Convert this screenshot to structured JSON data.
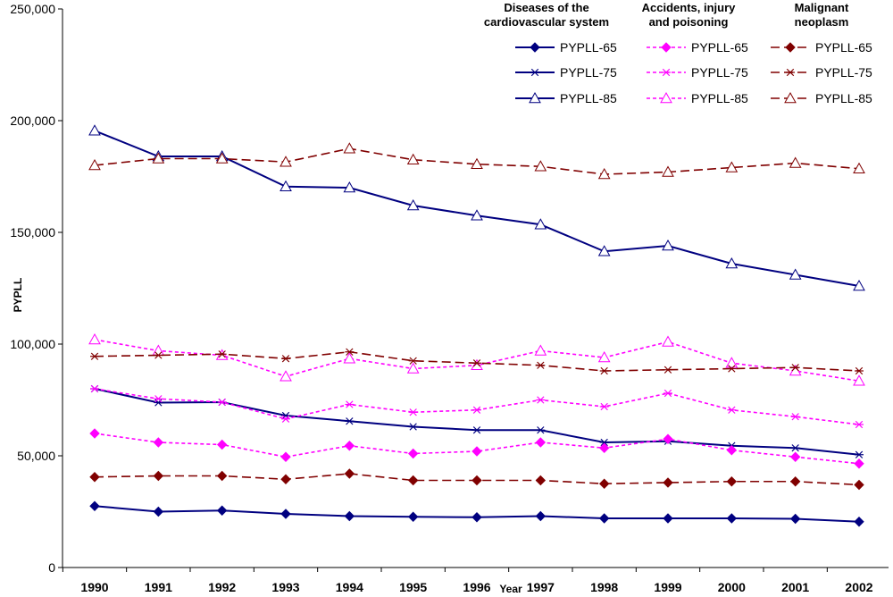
{
  "chart_data": {
    "type": "line",
    "title": "",
    "xlabel": "Year",
    "ylabel": "PYPLL",
    "x": [
      "1990",
      "1991",
      "1992",
      "1993",
      "1994",
      "1995",
      "1996",
      "1997",
      "1998",
      "1999",
      "2000",
      "2001",
      "2002"
    ],
    "ylim": [
      0,
      250000
    ],
    "y_ticks": [
      "0",
      "50,000",
      "100,000",
      "150,000",
      "200,000",
      "250,000"
    ],
    "y_tick_values": [
      0,
      50000,
      100000,
      150000,
      200000,
      250000
    ],
    "grid": false,
    "legend_position": "top-right",
    "legend_groups": [
      {
        "title_line1": "Diseases of the",
        "title_line2": "cardiovascular system",
        "color": "#000080",
        "dash": "solid"
      },
      {
        "title_line1": "Accidents, injury",
        "title_line2": "and poisoning",
        "color": "#ff00ff",
        "dash": "dotted"
      },
      {
        "title_line1": "Malignant",
        "title_line2": "neoplasm",
        "color": "#800000",
        "dash": "dashed"
      }
    ],
    "series": [
      {
        "name": "PYPLL-65",
        "group": 0,
        "marker": "diamond",
        "values": [
          27500,
          25000,
          25500,
          24000,
          23000,
          22700,
          22500,
          23000,
          22000,
          22000,
          22000,
          21800,
          20500
        ]
      },
      {
        "name": "PYPLL-75",
        "group": 0,
        "marker": "asterisk",
        "values": [
          80000,
          73800,
          74000,
          68000,
          65500,
          63000,
          61500,
          61500,
          56000,
          56500,
          54500,
          53500,
          50500
        ]
      },
      {
        "name": "PYPLL-85",
        "group": 0,
        "marker": "triangle",
        "values": [
          195500,
          184000,
          184000,
          170500,
          170000,
          162000,
          157500,
          153500,
          141500,
          144000,
          136000,
          131000,
          126000
        ]
      },
      {
        "name": "PYPLL-65",
        "group": 1,
        "marker": "diamond",
        "values": [
          60000,
          56000,
          55000,
          49500,
          54500,
          51000,
          52000,
          56000,
          53500,
          57500,
          52500,
          49500,
          46500
        ]
      },
      {
        "name": "PYPLL-75",
        "group": 1,
        "marker": "asterisk",
        "values": [
          80000,
          75500,
          74000,
          66500,
          73000,
          69500,
          70500,
          75000,
          72000,
          78000,
          70500,
          67500,
          64000
        ]
      },
      {
        "name": "PYPLL-85",
        "group": 1,
        "marker": "triangle",
        "values": [
          102000,
          97000,
          95000,
          85500,
          93500,
          89000,
          90500,
          97000,
          94000,
          101000,
          91500,
          88000,
          83500
        ]
      },
      {
        "name": "PYPLL-65",
        "group": 2,
        "marker": "diamond",
        "values": [
          40500,
          41000,
          41000,
          39500,
          42000,
          39000,
          39000,
          39000,
          37500,
          38000,
          38500,
          38500,
          37000
        ]
      },
      {
        "name": "PYPLL-75",
        "group": 2,
        "marker": "asterisk",
        "values": [
          94500,
          95000,
          95500,
          93500,
          96500,
          92500,
          91500,
          90500,
          88000,
          88500,
          89000,
          89500,
          88000
        ]
      },
      {
        "name": "PYPLL-85",
        "group": 2,
        "marker": "triangle",
        "values": [
          180000,
          183000,
          183000,
          181500,
          187500,
          182500,
          180500,
          179500,
          176000,
          177000,
          179000,
          181000,
          178500
        ]
      }
    ]
  }
}
